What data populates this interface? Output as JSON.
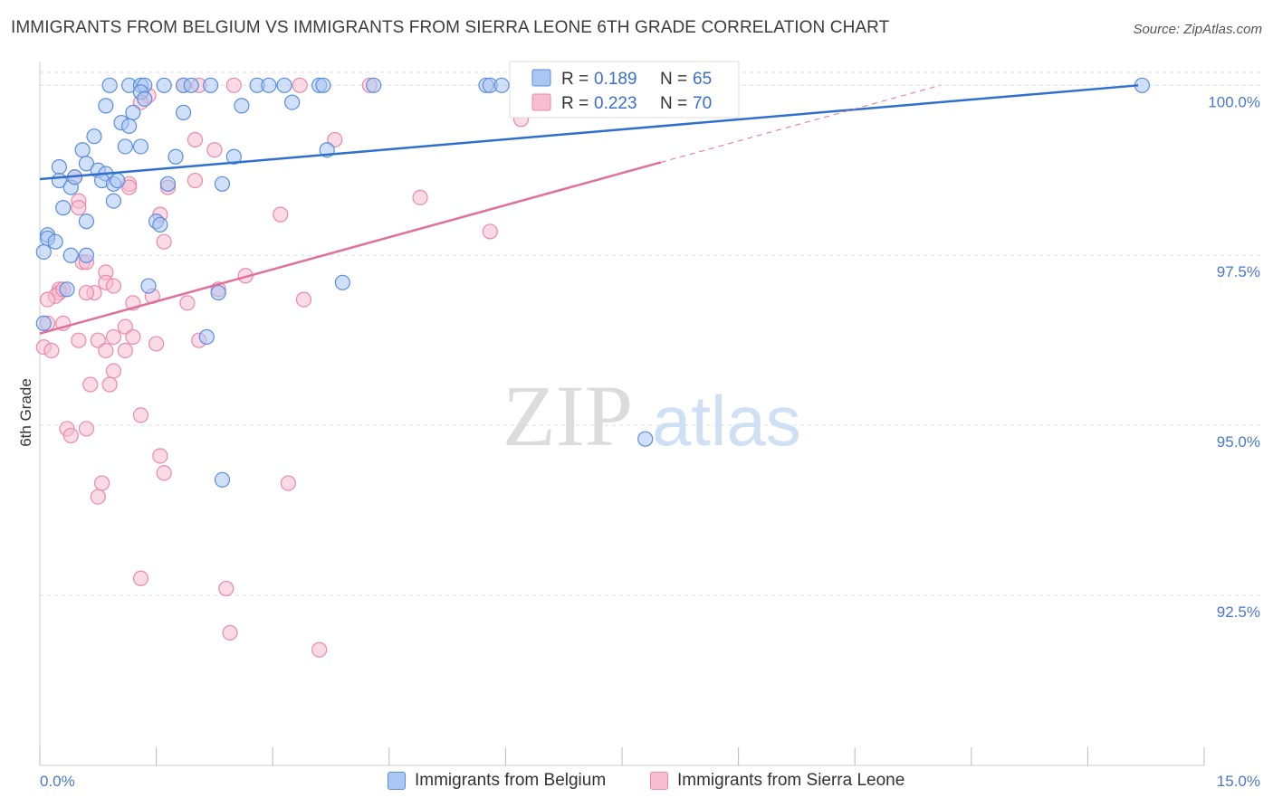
{
  "title": "IMMIGRANTS FROM BELGIUM VS IMMIGRANTS FROM SIERRA LEONE 6TH GRADE CORRELATION CHART",
  "source": "Source: ZipAtlas.com",
  "watermark": {
    "zip": "ZIP",
    "atlas": "atlas"
  },
  "colors": {
    "belgium_fill": "#aac6f2",
    "belgium_stroke": "#5b8dde",
    "belgium_line": "#2f6fd0",
    "sierra_fill": "#f6bcd0",
    "sierra_stroke": "#e88aa8",
    "sierra_line": "#e0709a",
    "axis_text": "#4a78c8",
    "grid": "#dddddd"
  },
  "legend": {
    "rows": [
      {
        "r_label": "R =",
        "r_value": "0.189",
        "n_label": "N =",
        "n_value": "65"
      },
      {
        "r_label": "R =",
        "r_value": "0.223",
        "n_label": "N =",
        "n_value": "70"
      }
    ]
  },
  "bottom_legend": [
    {
      "label": "Immigrants from Belgium"
    },
    {
      "label": "Immigrants from Sierra Leone"
    }
  ],
  "chart_data": {
    "type": "scatter",
    "title": "IMMIGRANTS FROM BELGIUM VS IMMIGRANTS FROM SIERRA LEONE 6TH GRADE CORRELATION CHART",
    "xlabel": "",
    "ylabel": "6th Grade",
    "xlim": [
      0,
      15
    ],
    "ylim": [
      90.0,
      100.35
    ],
    "x_tick_labels": [
      "0.0%",
      "15.0%"
    ],
    "y_ticks": [
      100.0,
      97.5,
      95.0,
      92.5
    ],
    "y_tick_labels": [
      "100.0%",
      "97.5%",
      "95.0%",
      "92.5%"
    ],
    "grid": true,
    "series": [
      {
        "name": "Immigrants from Belgium",
        "r": 0.189,
        "n": 65,
        "trend": {
          "x0": 0,
          "y0": 98.62,
          "x1": 14.15,
          "y1": 100.0,
          "solid_to": 14.15
        },
        "points": [
          [
            0.9,
            100.0
          ],
          [
            1.15,
            100.0
          ],
          [
            1.3,
            100.0
          ],
          [
            1.35,
            100.0
          ],
          [
            1.6,
            100.0
          ],
          [
            1.85,
            100.0
          ],
          [
            1.95,
            100.0
          ],
          [
            2.2,
            100.0
          ],
          [
            2.8,
            100.0
          ],
          [
            2.95,
            100.0
          ],
          [
            3.15,
            100.0
          ],
          [
            3.6,
            100.0
          ],
          [
            3.65,
            100.0
          ],
          [
            4.3,
            100.0
          ],
          [
            5.75,
            100.0
          ],
          [
            5.8,
            100.0
          ],
          [
            5.95,
            100.0
          ],
          [
            14.2,
            100.0
          ],
          [
            1.3,
            99.9
          ],
          [
            1.35,
            99.8
          ],
          [
            0.85,
            99.7
          ],
          [
            2.6,
            99.7
          ],
          [
            3.25,
            99.75
          ],
          [
            1.2,
            99.6
          ],
          [
            1.85,
            99.6
          ],
          [
            1.05,
            99.45
          ],
          [
            1.15,
            99.4
          ],
          [
            0.7,
            99.25
          ],
          [
            1.1,
            99.1
          ],
          [
            1.3,
            99.1
          ],
          [
            0.55,
            99.05
          ],
          [
            1.75,
            98.95
          ],
          [
            3.7,
            99.05
          ],
          [
            0.25,
            98.8
          ],
          [
            0.6,
            98.85
          ],
          [
            0.75,
            98.75
          ],
          [
            0.85,
            98.7
          ],
          [
            0.8,
            98.6
          ],
          [
            0.95,
            98.55
          ],
          [
            0.25,
            98.6
          ],
          [
            1.65,
            98.55
          ],
          [
            2.35,
            98.55
          ],
          [
            0.4,
            98.5
          ],
          [
            0.95,
            98.3
          ],
          [
            0.3,
            98.2
          ],
          [
            0.6,
            98.0
          ],
          [
            1.5,
            98.0
          ],
          [
            1.55,
            97.95
          ],
          [
            0.1,
            97.8
          ],
          [
            0.1,
            97.75
          ],
          [
            0.2,
            97.7
          ],
          [
            0.05,
            97.55
          ],
          [
            0.4,
            97.5
          ],
          [
            0.6,
            97.5
          ],
          [
            0.35,
            97.0
          ],
          [
            3.9,
            97.1
          ],
          [
            0.05,
            96.5
          ],
          [
            2.15,
            96.3
          ],
          [
            7.8,
            94.8
          ],
          [
            2.35,
            94.2
          ],
          [
            2.3,
            96.95
          ],
          [
            1.4,
            97.05
          ],
          [
            2.5,
            98.95
          ],
          [
            1.0,
            98.6
          ],
          [
            0.45,
            98.65
          ]
        ]
      },
      {
        "name": "Immigrants from Sierra Leone",
        "r": 0.223,
        "n": 70,
        "trend": {
          "x0": 0,
          "y0": 96.35,
          "x1": 11.6,
          "y1": 100.0,
          "solid_to": 8.0
        },
        "points": [
          [
            1.85,
            100.0
          ],
          [
            2.05,
            100.0
          ],
          [
            2.5,
            100.0
          ],
          [
            3.35,
            100.0
          ],
          [
            4.25,
            100.0
          ],
          [
            6.2,
            99.5
          ],
          [
            1.4,
            99.85
          ],
          [
            1.3,
            99.75
          ],
          [
            2.0,
            99.2
          ],
          [
            3.8,
            99.2
          ],
          [
            2.25,
            99.05
          ],
          [
            0.45,
            98.65
          ],
          [
            1.15,
            98.55
          ],
          [
            1.15,
            98.5
          ],
          [
            1.65,
            98.5
          ],
          [
            2.0,
            98.6
          ],
          [
            4.9,
            98.35
          ],
          [
            0.5,
            98.3
          ],
          [
            0.5,
            98.2
          ],
          [
            1.55,
            98.1
          ],
          [
            3.1,
            98.1
          ],
          [
            5.8,
            97.85
          ],
          [
            1.6,
            97.7
          ],
          [
            0.55,
            97.4
          ],
          [
            0.6,
            97.4
          ],
          [
            0.85,
            97.25
          ],
          [
            0.85,
            97.1
          ],
          [
            0.95,
            97.05
          ],
          [
            2.65,
            97.2
          ],
          [
            0.25,
            97.0
          ],
          [
            0.25,
            96.95
          ],
          [
            0.7,
            96.95
          ],
          [
            1.45,
            96.9
          ],
          [
            0.2,
            96.9
          ],
          [
            0.1,
            96.85
          ],
          [
            1.2,
            96.8
          ],
          [
            1.9,
            96.8
          ],
          [
            3.4,
            96.85
          ],
          [
            0.1,
            96.5
          ],
          [
            0.3,
            96.5
          ],
          [
            1.1,
            96.45
          ],
          [
            0.95,
            96.3
          ],
          [
            1.2,
            96.3
          ],
          [
            0.5,
            96.25
          ],
          [
            0.75,
            96.25
          ],
          [
            1.5,
            96.2
          ],
          [
            2.05,
            96.25
          ],
          [
            0.05,
            96.15
          ],
          [
            0.85,
            96.1
          ],
          [
            1.1,
            96.1
          ],
          [
            0.95,
            95.8
          ],
          [
            0.9,
            95.6
          ],
          [
            0.65,
            95.6
          ],
          [
            1.3,
            95.15
          ],
          [
            0.35,
            94.95
          ],
          [
            0.6,
            94.95
          ],
          [
            0.4,
            94.85
          ],
          [
            1.55,
            94.55
          ],
          [
            1.6,
            94.3
          ],
          [
            0.8,
            94.15
          ],
          [
            3.2,
            94.15
          ],
          [
            0.75,
            93.95
          ],
          [
            1.3,
            92.75
          ],
          [
            2.4,
            92.6
          ],
          [
            2.45,
            91.95
          ],
          [
            3.6,
            91.7
          ],
          [
            0.6,
            96.95
          ],
          [
            0.15,
            96.1
          ],
          [
            0.3,
            97.0
          ],
          [
            2.3,
            97.0
          ]
        ]
      }
    ]
  }
}
